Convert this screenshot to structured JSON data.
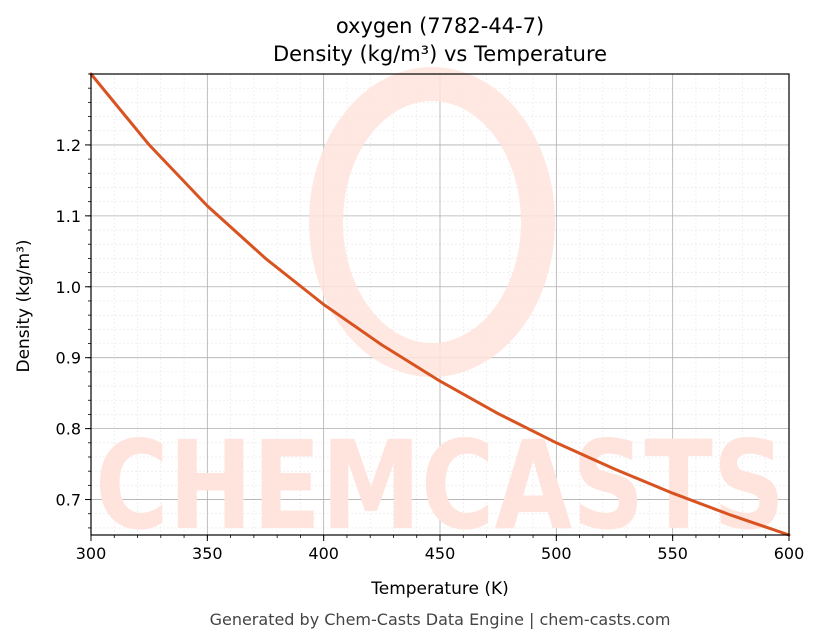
{
  "chart_data": {
    "type": "line",
    "title": "oxygen (7782-44-7)",
    "subtitle": "Density (kg/m³) vs Temperature",
    "xlabel": "Temperature (K)",
    "ylabel": "Density (kg/m³)",
    "xlim": [
      300,
      600
    ],
    "ylim": [
      0.65,
      1.3
    ],
    "xticks": [
      300,
      350,
      400,
      450,
      500,
      550,
      600
    ],
    "yticks": [
      0.7,
      0.8,
      0.9,
      1.0,
      1.1,
      1.2
    ],
    "grid": true,
    "minor_grid": true,
    "series": [
      {
        "color": "#d95321",
        "x": [
          300,
          325,
          350,
          375,
          400,
          425,
          450,
          475,
          500,
          525,
          550,
          575,
          600
        ],
        "y": [
          1.3,
          1.2,
          1.114,
          1.04,
          0.975,
          0.918,
          0.867,
          0.821,
          0.78,
          0.743,
          0.709,
          0.678,
          0.65
        ]
      }
    ]
  },
  "watermark": {
    "text": "CHEMCASTS",
    "color": "#ffe3dd"
  },
  "footer": "Generated by Chem-Casts Data Engine | chem-casts.com"
}
